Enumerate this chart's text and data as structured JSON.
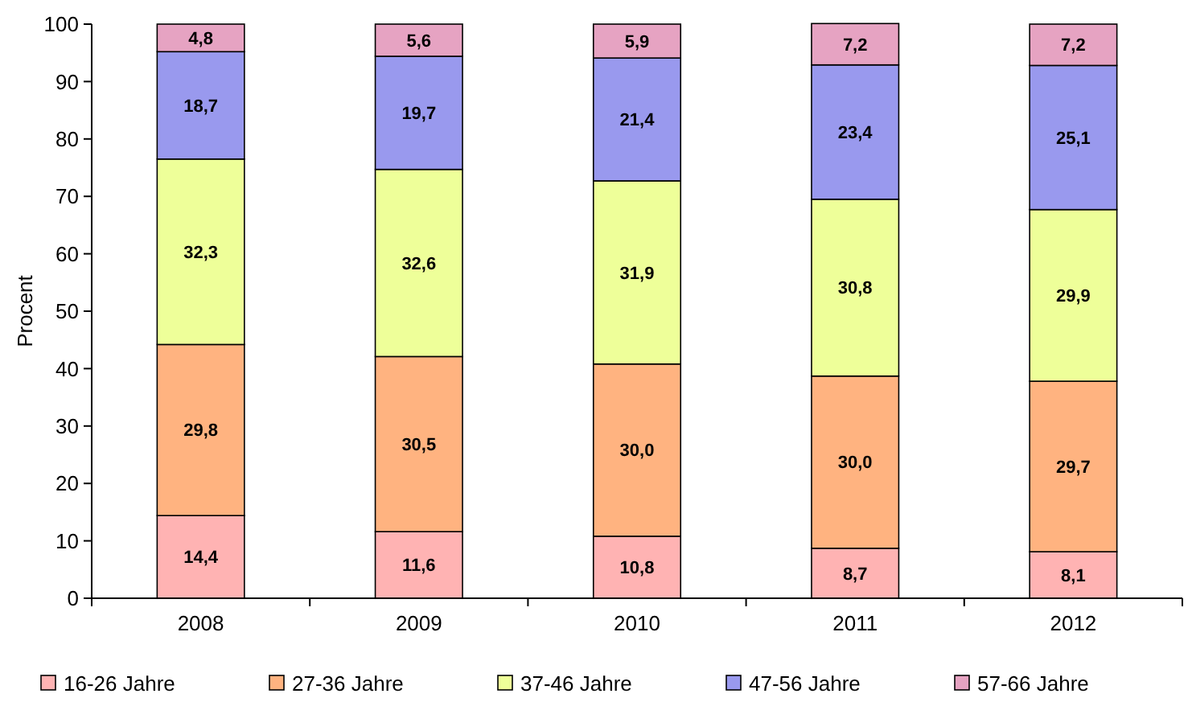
{
  "chart_data": {
    "type": "bar",
    "stacked": true,
    "ylabel": "Procent",
    "categories": [
      "2008",
      "2009",
      "2010",
      "2011",
      "2012"
    ],
    "ylim": [
      0,
      100
    ],
    "yticks": [
      0,
      10,
      20,
      30,
      40,
      50,
      60,
      70,
      80,
      90,
      100
    ],
    "grid": false,
    "legend": "bottom",
    "series": [
      {
        "name": "16-26 Jahre",
        "color": "#ffb3b3",
        "values": [
          14.4,
          11.6,
          10.8,
          8.7,
          8.1
        ],
        "value_labels": [
          "14,4",
          "11,6",
          "10,8",
          "8,7",
          "8,1"
        ]
      },
      {
        "name": "27-36 Jahre",
        "color": "#ffb380",
        "values": [
          29.8,
          30.5,
          30.0,
          30.0,
          29.7
        ],
        "value_labels": [
          "29,8",
          "30,5",
          "30,0",
          "30,0",
          "29,7"
        ]
      },
      {
        "name": "37-46 Jahre",
        "color": "#eeff99",
        "values": [
          32.3,
          32.6,
          31.9,
          30.8,
          29.9
        ],
        "value_labels": [
          "32,3",
          "32,6",
          "31,9",
          "30,8",
          "29,9"
        ]
      },
      {
        "name": "47-56 Jahre",
        "color": "#9999ee",
        "values": [
          18.7,
          19.7,
          21.4,
          23.4,
          25.1
        ],
        "value_labels": [
          "18,7",
          "19,7",
          "21,4",
          "23,4",
          "25,1"
        ]
      },
      {
        "name": "57-66 Jahre",
        "color": "#e6a3c2",
        "values": [
          4.8,
          5.6,
          5.9,
          7.2,
          7.2
        ],
        "value_labels": [
          "4,8",
          "5,6",
          "5,9",
          "7,2",
          "7,2"
        ]
      }
    ]
  }
}
